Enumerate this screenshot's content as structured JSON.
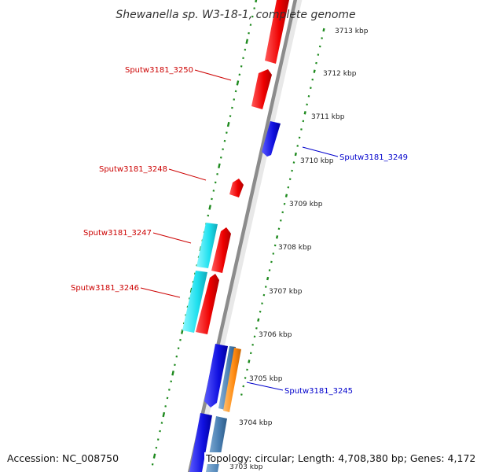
{
  "title": "Shewanella sp. W3-18-1, complete genome",
  "footer": {
    "accession": "Accession: NC_008750",
    "topology": "Topology: circular; Length: 4,708,380 bp; Genes: 4,172"
  },
  "colors": {
    "backbone": "#8c8c8c",
    "tick": "#1e8a1e",
    "forward_gene": "#ee1111",
    "reverse_gene": "#1111dd",
    "cyan_feature": "#22e5ee",
    "steelblue_feature": "#4f86b8",
    "orange_feature": "#ff8c1a",
    "forward_label": "#cc0000",
    "reverse_label": "#0000cc"
  },
  "kbp_ticks": [
    "3713 kbp",
    "3712 kbp",
    "3711 kbp",
    "3710 kbp",
    "3709 kbp",
    "3708 kbp",
    "3707 kbp",
    "3706 kbp",
    "3705 kbp",
    "3704 kbp",
    "3703 kbp"
  ],
  "gene_labels": [
    {
      "text": "Sputw3181_3250",
      "strand": "forward"
    },
    {
      "text": "Sputw3181_3249",
      "strand": "reverse"
    },
    {
      "text": "Sputw3181_3248",
      "strand": "forward"
    },
    {
      "text": "Sputw3181_3247",
      "strand": "forward"
    },
    {
      "text": "Sputw3181_3246",
      "strand": "forward"
    },
    {
      "text": "Sputw3181_3245",
      "strand": "reverse"
    }
  ]
}
